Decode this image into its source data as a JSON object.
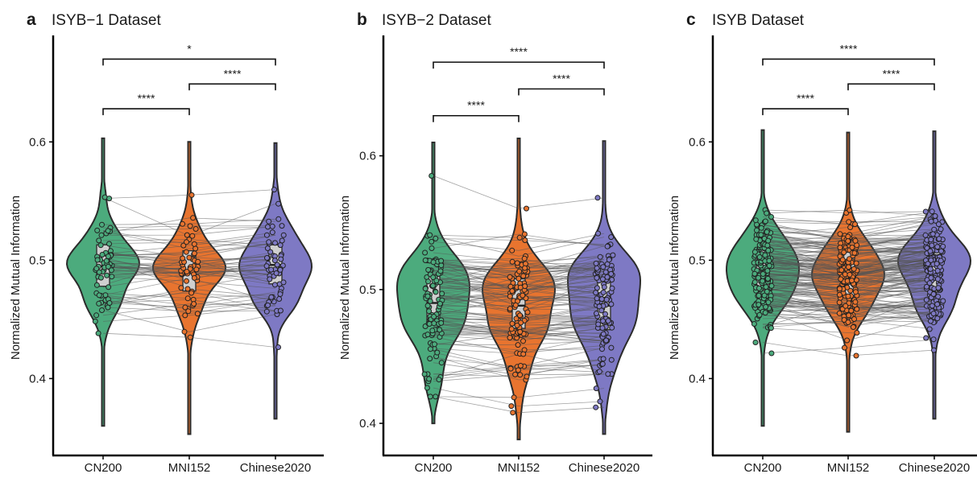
{
  "colors": {
    "CN200": "#4cab7d",
    "MNI152": "#e8742f",
    "Chinese2020": "#7e79c4",
    "line": "#555555",
    "box": "#cfcfcf"
  },
  "chart_data": [
    {
      "type": "violin",
      "panel": "a",
      "title": "ISYB−1 Dataset",
      "ylabel": "Normalized Mutual Information",
      "ylim": [
        0.335,
        0.69
      ],
      "yticks": [
        0.4,
        0.5,
        0.6
      ],
      "ytick_labels": [
        "0.4",
        "0.5",
        "0.6"
      ],
      "categories": [
        "CN200",
        "MNI152",
        "Chinese2020"
      ],
      "violin_range": [
        [
          0.36,
          0.603
        ],
        [
          0.353,
          0.6
        ],
        [
          0.366,
          0.599
        ]
      ],
      "box": [
        {
          "q1": 0.478,
          "median": 0.495,
          "q3": 0.513
        },
        {
          "q1": 0.474,
          "median": 0.49,
          "q3": 0.508
        },
        {
          "q1": 0.48,
          "median": 0.496,
          "q3": 0.513
        }
      ],
      "n_subjects": 60,
      "center": 0.495,
      "spread": 0.024,
      "significance": [
        {
          "from": 0,
          "to": 2,
          "y": 0.67,
          "label": "*"
        },
        {
          "from": 1,
          "to": 2,
          "y": 0.649,
          "label": "****"
        },
        {
          "from": 0,
          "to": 1,
          "y": 0.628,
          "label": "****"
        }
      ]
    },
    {
      "type": "violin",
      "panel": "b",
      "title": "ISYB−2 Dataset",
      "ylabel": "Normalized Mutual Information",
      "ylim": [
        0.376,
        0.69
      ],
      "yticks": [
        0.4,
        0.5,
        0.6
      ],
      "ytick_labels": [
        "0.4",
        "0.5",
        "0.6"
      ],
      "categories": [
        "CN200",
        "MNI152",
        "Chinese2020"
      ],
      "violin_range": [
        [
          0.4,
          0.61
        ],
        [
          0.388,
          0.613
        ],
        [
          0.392,
          0.611
        ]
      ],
      "box": [
        {
          "q1": 0.474,
          "median": 0.49,
          "q3": 0.51
        },
        {
          "q1": 0.471,
          "median": 0.488,
          "q3": 0.508
        },
        {
          "q1": 0.47,
          "median": 0.488,
          "q3": 0.507
        }
      ],
      "n_subjects": 110,
      "center": 0.49,
      "spread": 0.028,
      "significance": [
        {
          "from": 0,
          "to": 2,
          "y": 0.67,
          "label": "****"
        },
        {
          "from": 1,
          "to": 2,
          "y": 0.65,
          "label": "****"
        },
        {
          "from": 0,
          "to": 1,
          "y": 0.63,
          "label": "****"
        }
      ]
    },
    {
      "type": "violin",
      "panel": "c",
      "title": "ISYB Dataset",
      "ylabel": "Normalized Mutual Information",
      "ylim": [
        0.335,
        0.69
      ],
      "yticks": [
        0.4,
        0.5,
        0.6
      ],
      "ytick_labels": [
        "0.4",
        "0.5",
        "0.6"
      ],
      "categories": [
        "CN200",
        "MNI152",
        "Chinese2020"
      ],
      "violin_range": [
        [
          0.36,
          0.61
        ],
        [
          0.355,
          0.608
        ],
        [
          0.366,
          0.609
        ]
      ],
      "box": [
        {
          "q1": 0.474,
          "median": 0.491,
          "q3": 0.51
        },
        {
          "q1": 0.47,
          "median": 0.488,
          "q3": 0.507
        },
        {
          "q1": 0.473,
          "median": 0.49,
          "q3": 0.509
        }
      ],
      "n_subjects": 170,
      "center": 0.491,
      "spread": 0.026,
      "significance": [
        {
          "from": 0,
          "to": 2,
          "y": 0.67,
          "label": "****"
        },
        {
          "from": 1,
          "to": 2,
          "y": 0.649,
          "label": "****"
        },
        {
          "from": 0,
          "to": 1,
          "y": 0.628,
          "label": "****"
        }
      ]
    }
  ]
}
